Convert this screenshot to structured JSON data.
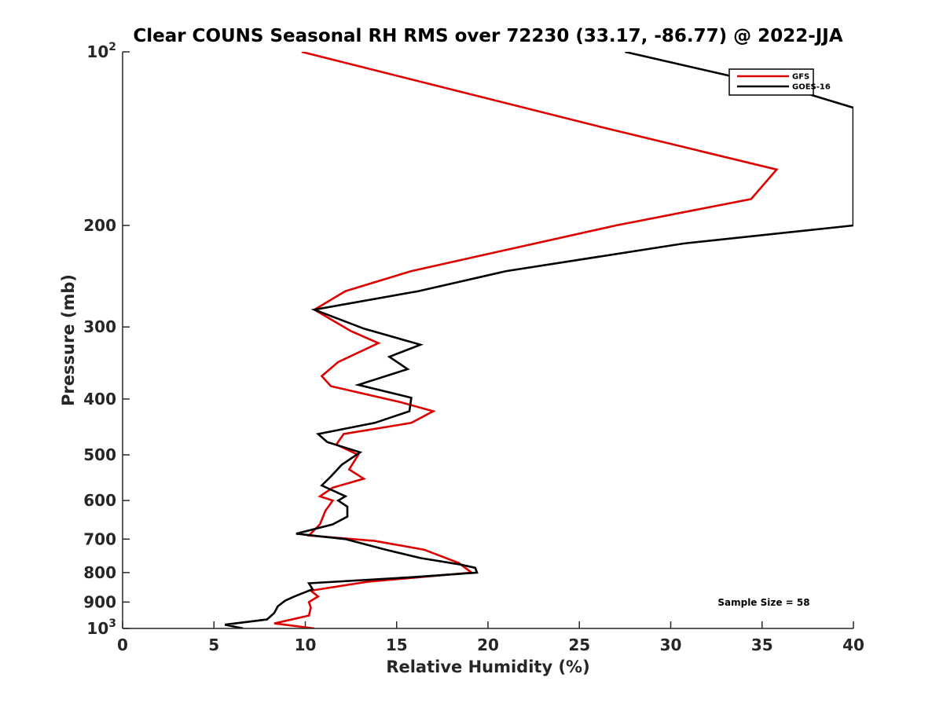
{
  "chart_data": {
    "type": "line",
    "title": "Clear COUNS Seasonal RH RMS over 72230 (33.17, -86.77) @ 2022-JJA",
    "xlabel": "Relative Humidity (%)",
    "ylabel": "Pressure (mb)",
    "xlim": [
      0,
      40
    ],
    "ylim": [
      100,
      1000
    ],
    "y_scale": "log",
    "y_reversed": true,
    "x_ticks": [
      "0",
      "5",
      "10",
      "15",
      "20",
      "25",
      "30",
      "35",
      "40"
    ],
    "y_ticks": [
      {
        "value": 100,
        "base": "10",
        "exp": "2"
      },
      {
        "value": 200,
        "label": "200"
      },
      {
        "value": 300,
        "label": "300"
      },
      {
        "value": 400,
        "label": "400"
      },
      {
        "value": 500,
        "label": "500"
      },
      {
        "value": 600,
        "label": "600"
      },
      {
        "value": 700,
        "label": "700"
      },
      {
        "value": 800,
        "label": "800"
      },
      {
        "value": 900,
        "label": "900"
      },
      {
        "value": 1000,
        "base": "10",
        "exp": "3"
      }
    ],
    "legend": {
      "position": "top-right"
    },
    "annotation": "Sample Size = 58",
    "series": [
      {
        "name": "GFS",
        "color": "#dd0000",
        "points": [
          [
            9.8,
            100
          ],
          [
            26.2,
            135
          ],
          [
            35.8,
            160
          ],
          [
            34.4,
            180
          ],
          [
            27,
            200
          ],
          [
            15.8,
            240
          ],
          [
            12.2,
            260
          ],
          [
            10.5,
            280
          ],
          [
            12.5,
            305
          ],
          [
            14,
            320
          ],
          [
            11.8,
            345
          ],
          [
            10.9,
            365
          ],
          [
            11.4,
            380
          ],
          [
            15.2,
            405
          ],
          [
            17,
            420
          ],
          [
            15.8,
            440
          ],
          [
            12.1,
            460
          ],
          [
            11.7,
            480
          ],
          [
            12.9,
            500
          ],
          [
            12.4,
            530
          ],
          [
            13.2,
            550
          ],
          [
            11.5,
            570
          ],
          [
            10.8,
            590
          ],
          [
            11.5,
            600
          ],
          [
            11.1,
            625
          ],
          [
            10.8,
            660
          ],
          [
            10.2,
            690
          ],
          [
            13.8,
            705
          ],
          [
            16.5,
            730
          ],
          [
            18.4,
            770
          ],
          [
            19.1,
            800
          ],
          [
            13.4,
            830
          ],
          [
            10.3,
            860
          ],
          [
            10.7,
            880
          ],
          [
            10.2,
            900
          ],
          [
            10.3,
            920
          ],
          [
            10.2,
            950
          ],
          [
            8.3,
            980
          ],
          [
            10.5,
            1000
          ]
        ]
      },
      {
        "name": "GOES-16",
        "color": "#000000",
        "points": [
          [
            27.5,
            100
          ],
          [
            37.4,
            118
          ],
          [
            40,
            125
          ],
          [
            40,
            200
          ],
          [
            30.7,
            215
          ],
          [
            21,
            240
          ],
          [
            16.2,
            260
          ],
          [
            10.5,
            280
          ],
          [
            13.2,
            302
          ],
          [
            16.3,
            322
          ],
          [
            14.6,
            338
          ],
          [
            15.6,
            355
          ],
          [
            12.9,
            378
          ],
          [
            15.8,
            398
          ],
          [
            15.7,
            420
          ],
          [
            13.8,
            440
          ],
          [
            10.7,
            460
          ],
          [
            11.2,
            475
          ],
          [
            13.0,
            495
          ],
          [
            12.0,
            520
          ],
          [
            11.4,
            545
          ],
          [
            10.9,
            565
          ],
          [
            11.7,
            580
          ],
          [
            12.2,
            590
          ],
          [
            11.8,
            600
          ],
          [
            12.3,
            615
          ],
          [
            12.3,
            640
          ],
          [
            11.5,
            660
          ],
          [
            9.5,
            685
          ],
          [
            12.2,
            700
          ],
          [
            14.4,
            730
          ],
          [
            16.3,
            755
          ],
          [
            18.5,
            775
          ],
          [
            19.3,
            785
          ],
          [
            19.4,
            800
          ],
          [
            15.8,
            815
          ],
          [
            10.2,
            835
          ],
          [
            10.4,
            855
          ],
          [
            9.8,
            870
          ],
          [
            9.4,
            880
          ],
          [
            8.9,
            895
          ],
          [
            8.5,
            915
          ],
          [
            8.3,
            940
          ],
          [
            7.9,
            965
          ],
          [
            5.6,
            985
          ],
          [
            6.6,
            1000
          ]
        ]
      }
    ]
  }
}
